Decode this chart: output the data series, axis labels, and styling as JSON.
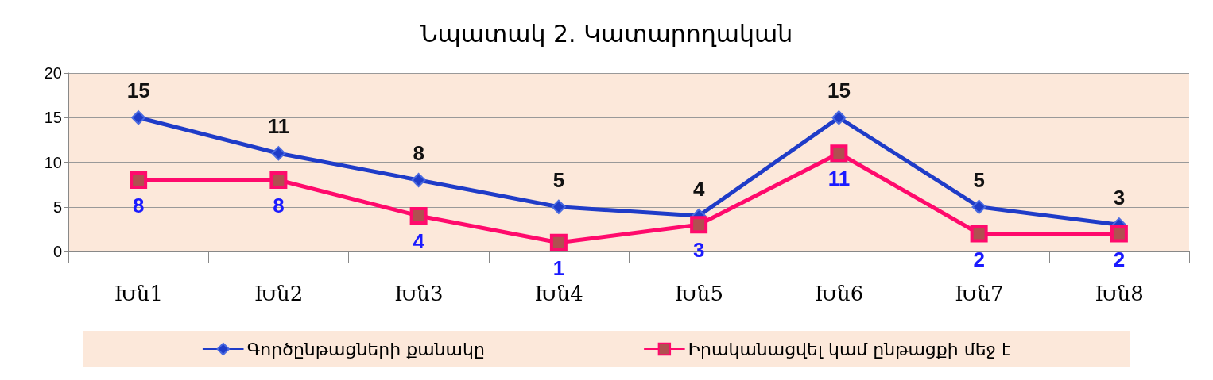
{
  "chart_data": {
    "type": "line",
    "title": "Նպատակ 2. Կատարողական",
    "categories": [
      "Խն1",
      "Խն2",
      "Խն3",
      "Խն4",
      "Խն5",
      "Խն6",
      "Խն7",
      "Խն8"
    ],
    "series": [
      {
        "name": "Գործընթացների քանակը",
        "color": "#1f3cc8",
        "marker": "diamond",
        "values": [
          15,
          11,
          8,
          5,
          4,
          15,
          5,
          3
        ]
      },
      {
        "name": "Իրականացվել կամ ընթացքի մեջ է",
        "color": "#ff0a6c",
        "marker": "square",
        "values": [
          8,
          8,
          4,
          1,
          3,
          11,
          2,
          2
        ]
      }
    ],
    "ylim": [
      0,
      20
    ],
    "yticks": [
      0,
      5,
      10,
      15,
      20
    ],
    "grid": "y",
    "legend": "bottom",
    "data_labels": true,
    "line_style": "solid"
  }
}
